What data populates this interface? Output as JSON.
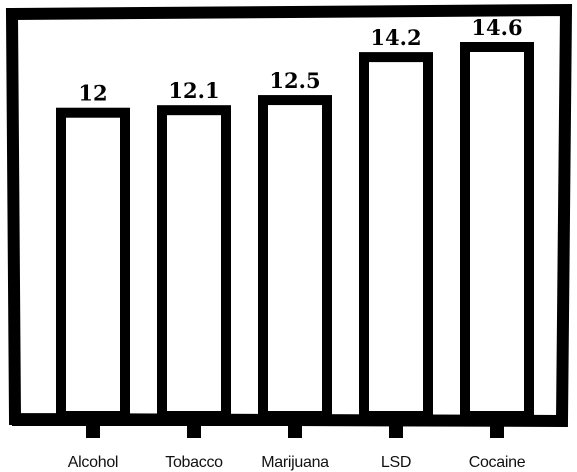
{
  "chart_data": {
    "type": "bar",
    "categories": [
      "Alcohol",
      "Tobacco",
      "Marijuana",
      "LSD",
      "Cocaine"
    ],
    "values": [
      12,
      12.1,
      12.5,
      14.2,
      14.6
    ],
    "color": "#000000"
  }
}
